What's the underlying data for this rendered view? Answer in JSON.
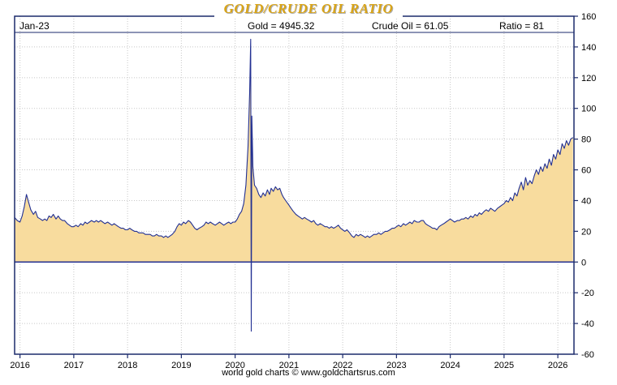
{
  "chart_data": {
    "type": "area",
    "title": "GOLD/CRUDE OIL RATIO",
    "header": {
      "date": "Jan-23",
      "gold": "Gold = 4945.32",
      "crude_oil": "Crude Oil = 61.05",
      "ratio": "Ratio = 81"
    },
    "caption": "world gold charts © www.goldchartsrus.com",
    "xlabel": "",
    "ylabel": "",
    "xlim": [
      2015.9,
      2026.3
    ],
    "ylim": [
      -60,
      160
    ],
    "x_ticks": [
      2016,
      2017,
      2018,
      2019,
      2020,
      2021,
      2022,
      2023,
      2024,
      2025,
      2026
    ],
    "y_ticks": [
      160,
      140,
      120,
      100,
      80,
      60,
      40,
      20,
      0,
      -20,
      -40,
      -60
    ],
    "zero_line": 0,
    "grid": true,
    "legend_position": "none",
    "colors": {
      "fill": "#F8DC9E",
      "line": "#223092",
      "zero_line": "#223092",
      "frame": "#1B2A6B",
      "grid": "#C8C8C8",
      "title": "#D9A417",
      "text": "#000000"
    },
    "series": [
      {
        "name": "Gold/Crude Oil Ratio",
        "points": [
          [
            2015.9,
            29
          ],
          [
            2015.95,
            27
          ],
          [
            2016.0,
            26
          ],
          [
            2016.04,
            30
          ],
          [
            2016.08,
            36
          ],
          [
            2016.12,
            44
          ],
          [
            2016.16,
            39
          ],
          [
            2016.2,
            34
          ],
          [
            2016.25,
            31
          ],
          [
            2016.29,
            33
          ],
          [
            2016.33,
            29
          ],
          [
            2016.38,
            28
          ],
          [
            2016.42,
            27
          ],
          [
            2016.46,
            28
          ],
          [
            2016.5,
            27
          ],
          [
            2016.54,
            30
          ],
          [
            2016.58,
            29
          ],
          [
            2016.62,
            31
          ],
          [
            2016.67,
            28
          ],
          [
            2016.71,
            30
          ],
          [
            2016.75,
            28
          ],
          [
            2016.79,
            27
          ],
          [
            2016.83,
            27
          ],
          [
            2016.88,
            25
          ],
          [
            2016.92,
            24
          ],
          [
            2016.96,
            23
          ],
          [
            2017.0,
            23
          ],
          [
            2017.04,
            24
          ],
          [
            2017.08,
            23
          ],
          [
            2017.13,
            25
          ],
          [
            2017.17,
            24
          ],
          [
            2017.21,
            26
          ],
          [
            2017.25,
            25
          ],
          [
            2017.29,
            26
          ],
          [
            2017.33,
            27
          ],
          [
            2017.38,
            26
          ],
          [
            2017.42,
            27
          ],
          [
            2017.46,
            26
          ],
          [
            2017.5,
            27
          ],
          [
            2017.54,
            26
          ],
          [
            2017.58,
            25
          ],
          [
            2017.63,
            26
          ],
          [
            2017.67,
            25
          ],
          [
            2017.71,
            24
          ],
          [
            2017.75,
            25
          ],
          [
            2017.79,
            24
          ],
          [
            2017.83,
            23
          ],
          [
            2017.88,
            22
          ],
          [
            2017.92,
            22
          ],
          [
            2017.96,
            21
          ],
          [
            2018.0,
            21
          ],
          [
            2018.04,
            22
          ],
          [
            2018.08,
            21
          ],
          [
            2018.13,
            20
          ],
          [
            2018.17,
            20
          ],
          [
            2018.21,
            19
          ],
          [
            2018.25,
            19
          ],
          [
            2018.29,
            19
          ],
          [
            2018.33,
            18
          ],
          [
            2018.38,
            18
          ],
          [
            2018.42,
            18
          ],
          [
            2018.46,
            17
          ],
          [
            2018.5,
            17
          ],
          [
            2018.54,
            18
          ],
          [
            2018.58,
            17
          ],
          [
            2018.63,
            17
          ],
          [
            2018.67,
            16
          ],
          [
            2018.71,
            17
          ],
          [
            2018.75,
            16
          ],
          [
            2018.79,
            17
          ],
          [
            2018.83,
            18
          ],
          [
            2018.88,
            20
          ],
          [
            2018.92,
            23
          ],
          [
            2018.96,
            25
          ],
          [
            2019.0,
            24
          ],
          [
            2019.04,
            26
          ],
          [
            2019.08,
            25
          ],
          [
            2019.13,
            27
          ],
          [
            2019.17,
            26
          ],
          [
            2019.21,
            24
          ],
          [
            2019.25,
            22
          ],
          [
            2019.29,
            21
          ],
          [
            2019.33,
            22
          ],
          [
            2019.38,
            23
          ],
          [
            2019.42,
            24
          ],
          [
            2019.46,
            26
          ],
          [
            2019.5,
            25
          ],
          [
            2019.54,
            26
          ],
          [
            2019.58,
            25
          ],
          [
            2019.63,
            24
          ],
          [
            2019.67,
            25
          ],
          [
            2019.71,
            26
          ],
          [
            2019.75,
            25
          ],
          [
            2019.79,
            24
          ],
          [
            2019.83,
            25
          ],
          [
            2019.88,
            26
          ],
          [
            2019.92,
            25
          ],
          [
            2019.96,
            26
          ],
          [
            2020.0,
            26
          ],
          [
            2020.04,
            28
          ],
          [
            2020.08,
            31
          ],
          [
            2020.12,
            33
          ],
          [
            2020.16,
            38
          ],
          [
            2020.2,
            50
          ],
          [
            2020.24,
            75
          ],
          [
            2020.27,
            110
          ],
          [
            2020.29,
            145
          ],
          [
            2020.3,
            -45
          ],
          [
            2020.31,
            95
          ],
          [
            2020.33,
            62
          ],
          [
            2020.36,
            50
          ],
          [
            2020.4,
            48
          ],
          [
            2020.44,
            44
          ],
          [
            2020.48,
            42
          ],
          [
            2020.52,
            45
          ],
          [
            2020.56,
            43
          ],
          [
            2020.6,
            47
          ],
          [
            2020.64,
            44
          ],
          [
            2020.67,
            48
          ],
          [
            2020.71,
            46
          ],
          [
            2020.75,
            49
          ],
          [
            2020.79,
            47
          ],
          [
            2020.83,
            48
          ],
          [
            2020.87,
            44
          ],
          [
            2020.9,
            42
          ],
          [
            2020.94,
            40
          ],
          [
            2021.0,
            37
          ],
          [
            2021.04,
            35
          ],
          [
            2021.08,
            33
          ],
          [
            2021.13,
            31
          ],
          [
            2021.17,
            30
          ],
          [
            2021.21,
            29
          ],
          [
            2021.25,
            28
          ],
          [
            2021.29,
            29
          ],
          [
            2021.33,
            28
          ],
          [
            2021.38,
            27
          ],
          [
            2021.42,
            26
          ],
          [
            2021.46,
            27
          ],
          [
            2021.5,
            25
          ],
          [
            2021.54,
            24
          ],
          [
            2021.58,
            25
          ],
          [
            2021.63,
            24
          ],
          [
            2021.67,
            23
          ],
          [
            2021.71,
            23
          ],
          [
            2021.75,
            22
          ],
          [
            2021.79,
            23
          ],
          [
            2021.83,
            22
          ],
          [
            2021.88,
            23
          ],
          [
            2021.92,
            24
          ],
          [
            2021.96,
            22
          ],
          [
            2022.0,
            21
          ],
          [
            2022.04,
            20
          ],
          [
            2022.08,
            21
          ],
          [
            2022.13,
            19
          ],
          [
            2022.17,
            17
          ],
          [
            2022.21,
            16
          ],
          [
            2022.25,
            18
          ],
          [
            2022.29,
            17
          ],
          [
            2022.33,
            18
          ],
          [
            2022.38,
            17
          ],
          [
            2022.42,
            16
          ],
          [
            2022.46,
            17
          ],
          [
            2022.5,
            16
          ],
          [
            2022.54,
            17
          ],
          [
            2022.58,
            18
          ],
          [
            2022.63,
            18
          ],
          [
            2022.67,
            19
          ],
          [
            2022.71,
            18
          ],
          [
            2022.75,
            19
          ],
          [
            2022.79,
            20
          ],
          [
            2022.83,
            20
          ],
          [
            2022.88,
            21
          ],
          [
            2022.92,
            22
          ],
          [
            2022.96,
            22
          ],
          [
            2023.0,
            23
          ],
          [
            2023.04,
            24
          ],
          [
            2023.08,
            23
          ],
          [
            2023.13,
            25
          ],
          [
            2023.17,
            24
          ],
          [
            2023.21,
            25
          ],
          [
            2023.25,
            26
          ],
          [
            2023.29,
            25
          ],
          [
            2023.33,
            27
          ],
          [
            2023.38,
            26
          ],
          [
            2023.42,
            26
          ],
          [
            2023.46,
            27
          ],
          [
            2023.5,
            27
          ],
          [
            2023.54,
            25
          ],
          [
            2023.58,
            24
          ],
          [
            2023.63,
            23
          ],
          [
            2023.67,
            22
          ],
          [
            2023.71,
            22
          ],
          [
            2023.75,
            21
          ],
          [
            2023.79,
            23
          ],
          [
            2023.83,
            24
          ],
          [
            2023.88,
            25
          ],
          [
            2023.92,
            26
          ],
          [
            2023.96,
            27
          ],
          [
            2024.0,
            28
          ],
          [
            2024.04,
            27
          ],
          [
            2024.08,
            26
          ],
          [
            2024.13,
            27
          ],
          [
            2024.17,
            27
          ],
          [
            2024.21,
            28
          ],
          [
            2024.25,
            28
          ],
          [
            2024.29,
            29
          ],
          [
            2024.33,
            28
          ],
          [
            2024.38,
            30
          ],
          [
            2024.42,
            29
          ],
          [
            2024.46,
            31
          ],
          [
            2024.5,
            30
          ],
          [
            2024.54,
            32
          ],
          [
            2024.58,
            31
          ],
          [
            2024.63,
            33
          ],
          [
            2024.67,
            34
          ],
          [
            2024.71,
            33
          ],
          [
            2024.75,
            35
          ],
          [
            2024.79,
            34
          ],
          [
            2024.83,
            33
          ],
          [
            2024.88,
            35
          ],
          [
            2024.92,
            36
          ],
          [
            2024.96,
            37
          ],
          [
            2025.0,
            38
          ],
          [
            2025.04,
            40
          ],
          [
            2025.08,
            39
          ],
          [
            2025.12,
            42
          ],
          [
            2025.16,
            40
          ],
          [
            2025.2,
            45
          ],
          [
            2025.24,
            43
          ],
          [
            2025.28,
            48
          ],
          [
            2025.32,
            52
          ],
          [
            2025.36,
            47
          ],
          [
            2025.4,
            55
          ],
          [
            2025.44,
            50
          ],
          [
            2025.48,
            53
          ],
          [
            2025.52,
            51
          ],
          [
            2025.56,
            56
          ],
          [
            2025.6,
            60
          ],
          [
            2025.64,
            57
          ],
          [
            2025.68,
            62
          ],
          [
            2025.72,
            59
          ],
          [
            2025.76,
            64
          ],
          [
            2025.8,
            61
          ],
          [
            2025.84,
            67
          ],
          [
            2025.88,
            63
          ],
          [
            2025.92,
            70
          ],
          [
            2025.96,
            67
          ],
          [
            2026.0,
            73
          ],
          [
            2026.04,
            70
          ],
          [
            2026.08,
            77
          ],
          [
            2026.12,
            74
          ],
          [
            2026.16,
            79
          ],
          [
            2026.2,
            76
          ],
          [
            2026.24,
            80
          ],
          [
            2026.28,
            81
          ]
        ]
      }
    ]
  }
}
